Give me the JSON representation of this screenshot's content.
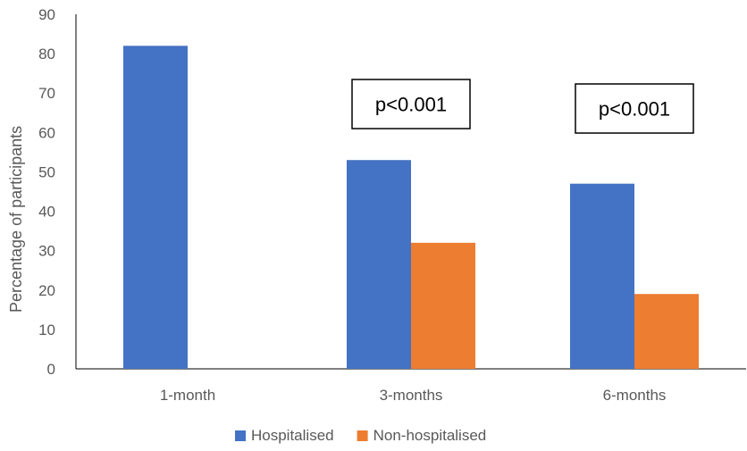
{
  "chart_data": {
    "type": "bar",
    "categories": [
      "1-month",
      "3-months",
      "6-months"
    ],
    "series": [
      {
        "name": "Hospitalised",
        "values": [
          82,
          53,
          47
        ],
        "color": "#4472C4"
      },
      {
        "name": "Non-hospitalised",
        "values": [
          null,
          32,
          19
        ],
        "color": "#ED7D31"
      }
    ],
    "ylabel": "Percentage of participants",
    "xlabel": "",
    "ylim": [
      0,
      90
    ],
    "yticks": [
      0,
      10,
      20,
      30,
      40,
      50,
      60,
      70,
      80,
      90
    ],
    "grid": false,
    "legend_position": "bottom",
    "annotations": [
      {
        "text": "p<0.001",
        "category": "3-months"
      },
      {
        "text": "p<0.001",
        "category": "6-months"
      }
    ]
  }
}
